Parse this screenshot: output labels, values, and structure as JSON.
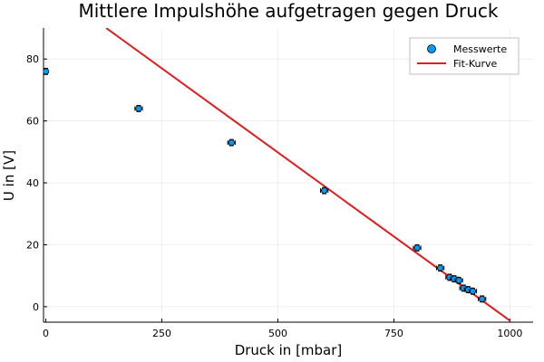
{
  "chart_data": {
    "type": "scatter",
    "title": "Mittlere Impulshöhe aufgetragen gegen Druck",
    "xlabel": "Druck in [mbar]",
    "ylabel": "U in [V]",
    "xlim": [
      -5,
      1050
    ],
    "ylim": [
      -5,
      90
    ],
    "xticks": [
      0,
      250,
      500,
      750,
      1000
    ],
    "yticks": [
      0,
      20,
      40,
      60,
      80
    ],
    "grid": true,
    "legend_position": "top-right",
    "series": [
      {
        "name": "Messwerte",
        "kind": "scatter-with-errorbars",
        "color": "#009af9",
        "x": [
          0,
          200,
          400,
          600,
          800,
          850,
          870,
          880,
          890,
          900,
          910,
          920,
          940
        ],
        "y": [
          76,
          64,
          53,
          37.5,
          19,
          12.5,
          9.5,
          9,
          8.5,
          6,
          5.5,
          5,
          2.5
        ],
        "x_err": [
          3,
          8,
          8,
          8,
          8,
          8,
          8,
          8,
          8,
          8,
          8,
          8,
          8
        ],
        "y_err": [
          1,
          1,
          1,
          1,
          1,
          1,
          1,
          1,
          1,
          1,
          1,
          1,
          1
        ]
      },
      {
        "name": "Fit-Kurve",
        "kind": "line",
        "color": "#e31a1c",
        "x": [
          130,
          1000
        ],
        "y": [
          90,
          -4.5
        ]
      }
    ]
  }
}
